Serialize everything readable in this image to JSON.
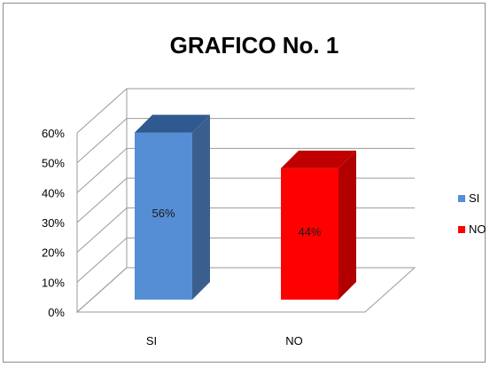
{
  "chart_data": {
    "type": "bar",
    "title": "GRAFICO No. 1",
    "categories": [
      "SI",
      "NO"
    ],
    "values": [
      0.56,
      0.44
    ],
    "data_labels": [
      "56%",
      "44%"
    ],
    "yticks": [
      "0%",
      "10%",
      "20%",
      "30%",
      "40%",
      "50%",
      "60%"
    ],
    "ylim": [
      0,
      0.6
    ],
    "grid": true,
    "three_d": true,
    "legend": {
      "position": "right",
      "entries": [
        {
          "label": "SI",
          "color": "#558ed5"
        },
        {
          "label": "NO",
          "color": "#ff0000"
        }
      ]
    },
    "colors": {
      "SI": {
        "front": "#558ed5",
        "side": "#3a5f8f",
        "top": "#2f5a8f"
      },
      "NO": {
        "front": "#ff0000",
        "side": "#b20000",
        "top": "#c00000"
      }
    }
  }
}
